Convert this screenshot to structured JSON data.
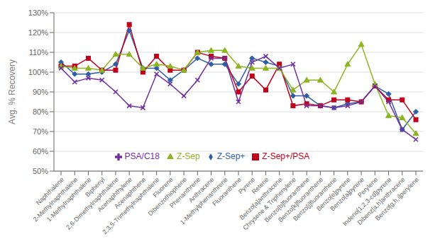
{
  "chart_data": {
    "type": "line",
    "ylabel": "Avg. % Recovery",
    "categories": [
      "Naphthalene",
      "2-Methylnaphthalene",
      "1-Methylnaphthalene",
      "Biphenyl",
      "2,6-Dimethylnaphthalene",
      "Acenaphthylene",
      "Acenaphthene",
      "2,3,5-Trimethylnaphthalene",
      "Fluorene",
      "Dibenzothiophene",
      "Phenanthrene",
      "Anthracene",
      "1-Methylphenanthrene",
      "Fluoranthene",
      "Pyrene",
      "Retene",
      "Benzo[a]anthracene",
      "Chrysene & Triphenylene",
      "Benzo[b]fluoranthene",
      "Benzo[k]fluoranthene",
      "Benzo[j]fluoranthene",
      "Benzo[e]pyrene",
      "Benzo[a]pyrene",
      "Perylene",
      "Indeno[1,2,3-cd]pyrene",
      "Dibenz[a,h]anthracene",
      "Benzo[g,h,i]perylene"
    ],
    "series": [
      {
        "name": "Z-Sep+",
        "color": "#2E5EA8",
        "marker": "diamond",
        "values": [
          105,
          99,
          99,
          100,
          104,
          121,
          102,
          102,
          96,
          101,
          107,
          104,
          104,
          94,
          107,
          105,
          103,
          88,
          88,
          83,
          82,
          84,
          85,
          93,
          89,
          71,
          80
        ]
      },
      {
        "name": "Z-Sep+/PSA",
        "color": "#C0001A",
        "marker": "square",
        "values": [
          103,
          103,
          107,
          101,
          101,
          124,
          100,
          108,
          101,
          101,
          110,
          108,
          107,
          90,
          98,
          91,
          104,
          83,
          84,
          83,
          86,
          86,
          85,
          93,
          86,
          86,
          76
        ]
      },
      {
        "name": "Z-Sep",
        "color": "#8DB520",
        "marker": "triangle",
        "values": [
          103,
          102,
          102,
          101,
          109,
          109,
          102,
          104,
          103,
          101,
          110,
          111,
          111,
          103,
          102,
          102,
          102,
          91,
          96,
          96,
          90,
          104,
          114,
          94,
          78,
          77,
          69
        ]
      },
      {
        "name": "PSA/C18",
        "color": "#7030A0",
        "marker": "x",
        "values": [
          102,
          95,
          97,
          96,
          90,
          83,
          82,
          99,
          94,
          88,
          96,
          107,
          107,
          85,
          105,
          108,
          102,
          104,
          83,
          83,
          82,
          83,
          85,
          93,
          85,
          71,
          66
        ]
      }
    ],
    "ylim": [
      50,
      130
    ],
    "yticks": [
      {
        "value": 50,
        "label": "50%"
      },
      {
        "value": 60,
        "label": "60%"
      },
      {
        "value": 70,
        "label": "70%"
      },
      {
        "value": 80,
        "label": "80%"
      },
      {
        "value": 90,
        "label": "90%"
      },
      {
        "value": 100,
        "label": "100%"
      },
      {
        "value": 110,
        "label": "110%"
      },
      {
        "value": 120,
        "label": "120%"
      },
      {
        "value": 130,
        "label": "130%"
      }
    ],
    "grid": true,
    "legend": "lower center"
  }
}
